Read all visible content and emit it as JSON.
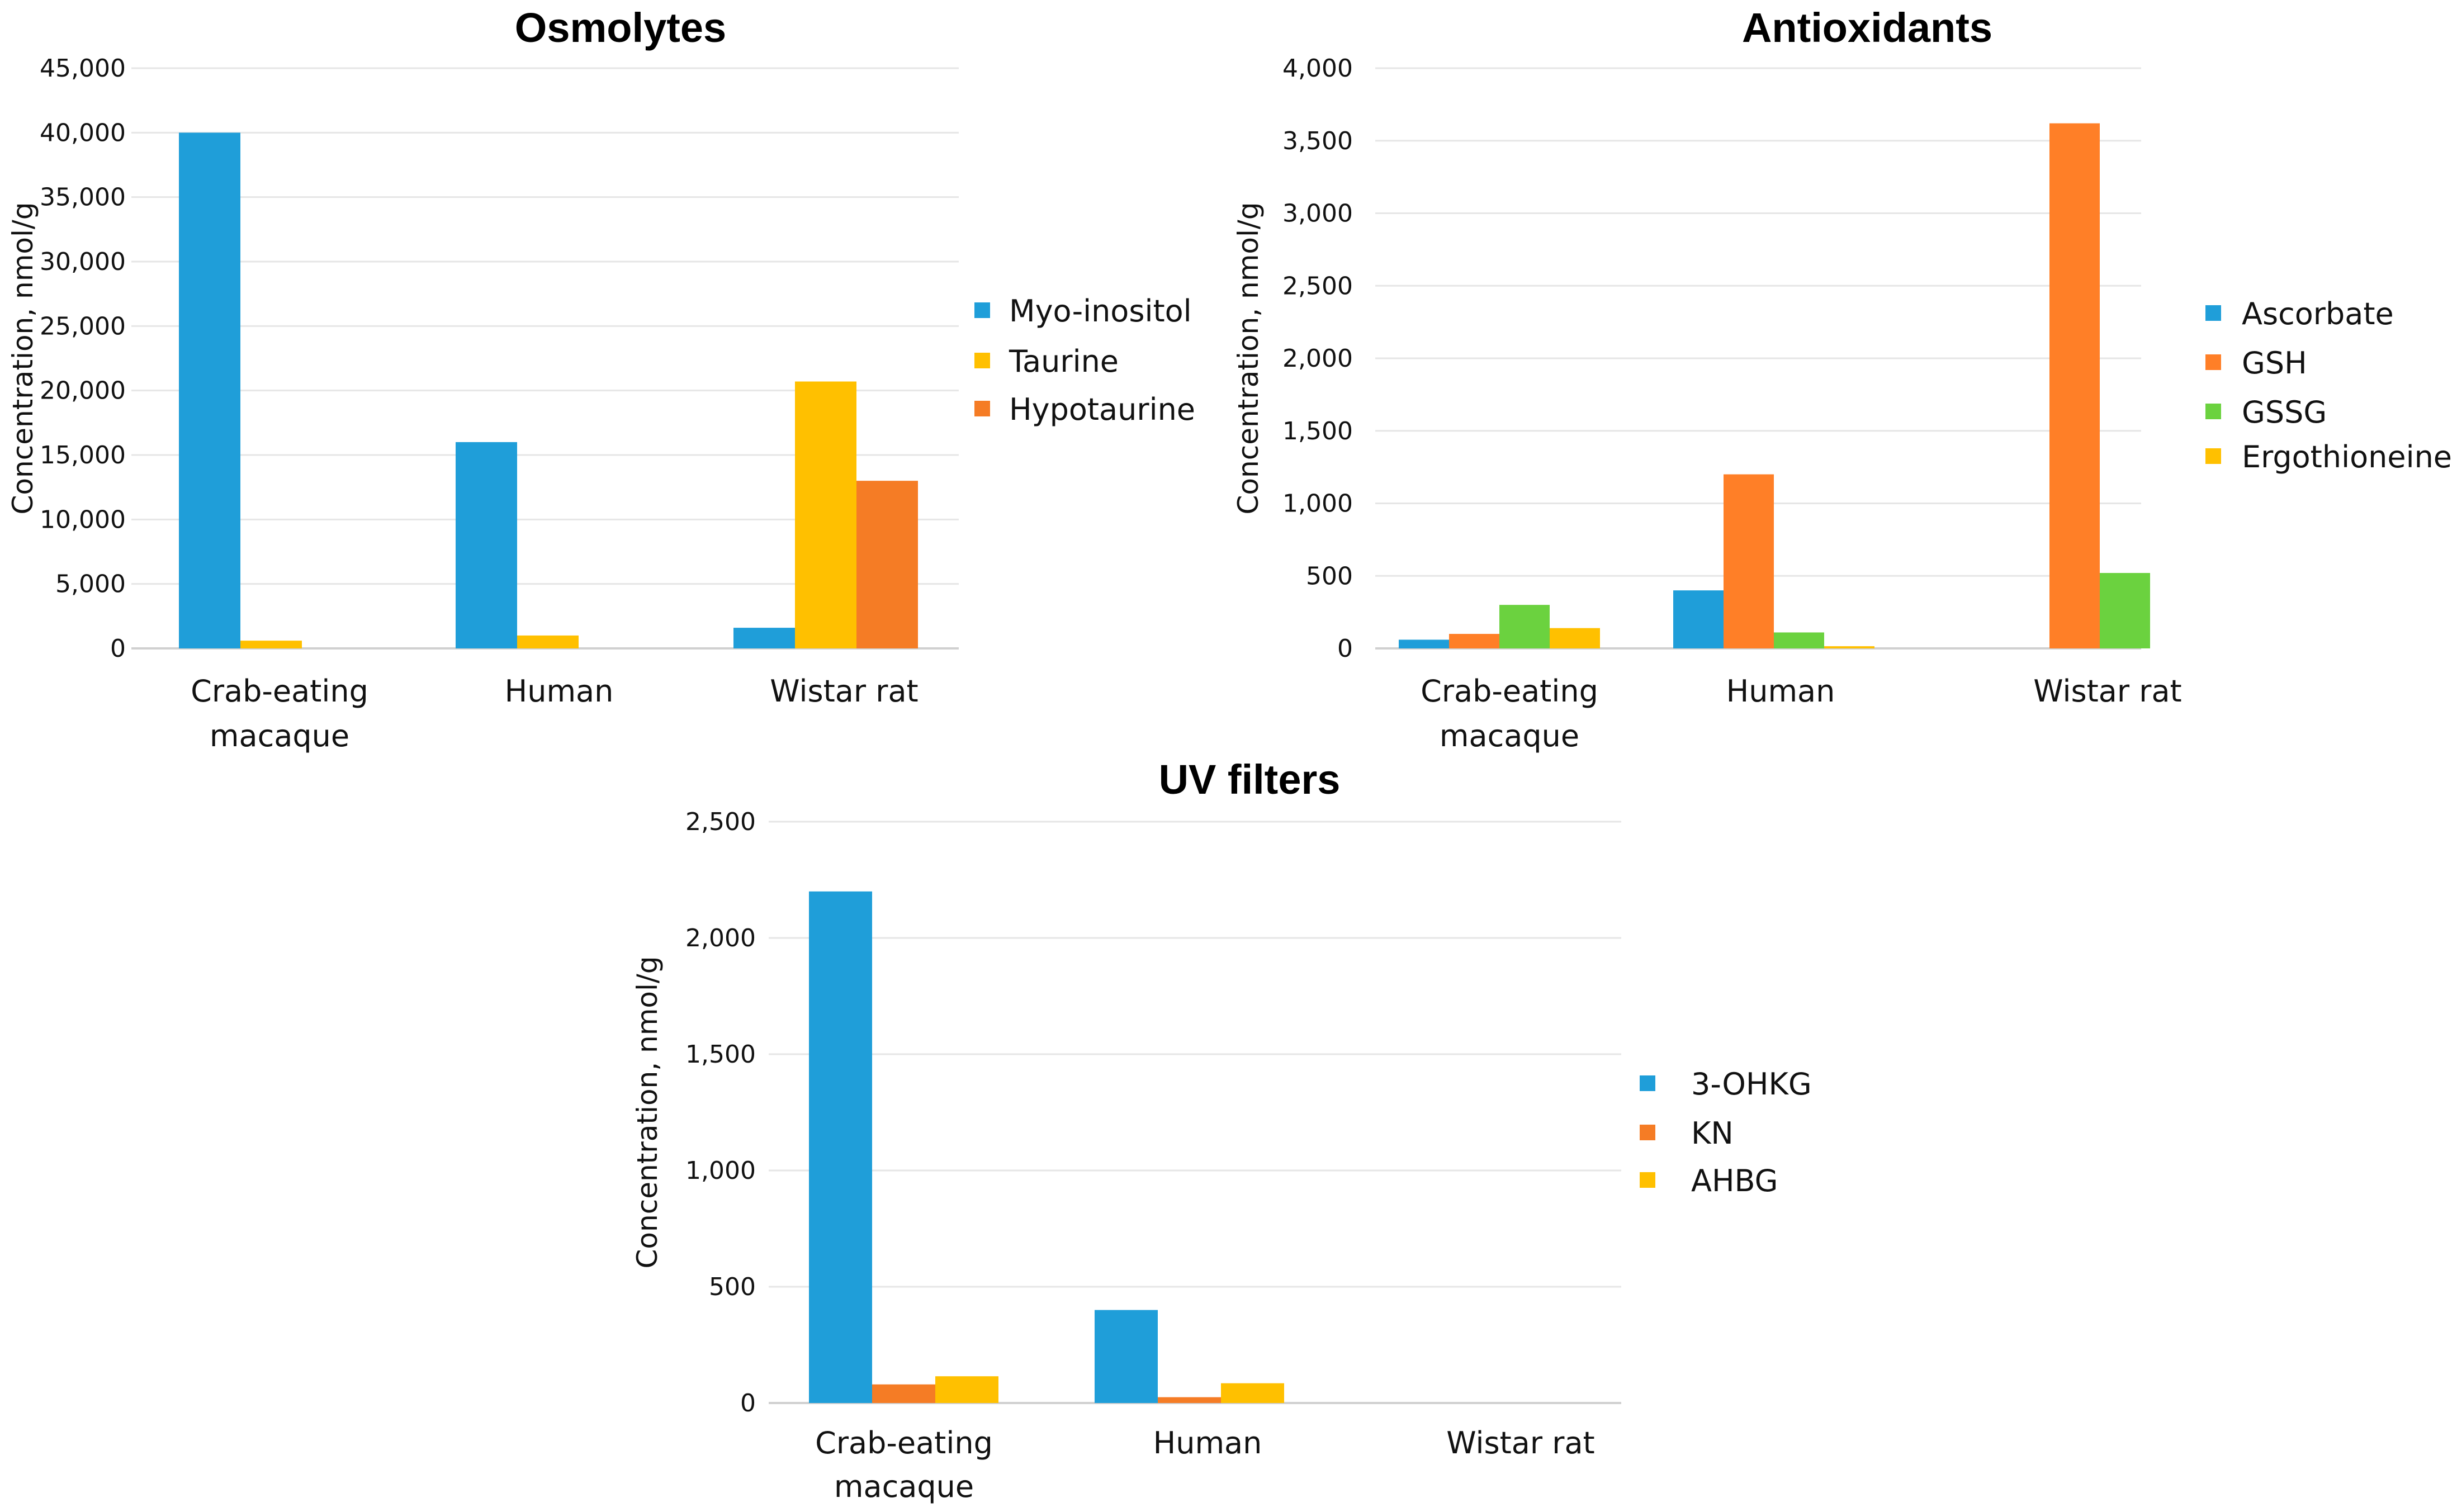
{
  "chart_data": [
    {
      "type": "bar",
      "title": "Osmolytes",
      "ylabel": "Concentration, nmol/g",
      "ylim": [
        0,
        45000
      ],
      "yticks": [
        "0",
        "5,000",
        "10,000",
        "15,000",
        "20,000",
        "25,000",
        "30,000",
        "35,000",
        "40,000",
        "45,000"
      ],
      "ytick_values": [
        0,
        5000,
        10000,
        15000,
        20000,
        25000,
        30000,
        35000,
        40000,
        45000
      ],
      "categories": [
        [
          "Crab-eating",
          "macaque"
        ],
        [
          "Human"
        ],
        [
          "Wistar rat"
        ]
      ],
      "series": [
        {
          "name": "Myo-inositol",
          "color": "#1f9ed9",
          "values": [
            40000,
            16000,
            1600
          ]
        },
        {
          "name": "Taurine",
          "color": "#ffc000",
          "values": [
            600,
            1000,
            20700
          ]
        },
        {
          "name": "Hypotaurine",
          "color": "#f57c25",
          "values": [
            0,
            0,
            13000
          ]
        }
      ],
      "legend": "right"
    },
    {
      "type": "bar",
      "title": "Antioxidants",
      "ylabel": "Concentration, nmol/g",
      "ylim": [
        0,
        4000
      ],
      "yticks": [
        "0",
        "500",
        "1,000",
        "1,500",
        "2,000",
        "2,500",
        "3,000",
        "3,500",
        "4,000"
      ],
      "ytick_values": [
        0,
        500,
        1000,
        1500,
        2000,
        2500,
        3000,
        3500,
        4000
      ],
      "categories": [
        [
          "Crab-eating",
          "macaque"
        ],
        [
          "Human"
        ],
        [
          "Wistar rat"
        ]
      ],
      "series": [
        {
          "name": "Ascorbate",
          "color": "#1f9ed9",
          "values": [
            60,
            400,
            0
          ]
        },
        {
          "name": "GSH",
          "color": "#ff7f27",
          "values": [
            100,
            1200,
            3620
          ]
        },
        {
          "name": "GSSG",
          "color": "#6bd23f",
          "values": [
            300,
            110,
            520
          ]
        },
        {
          "name": "Ergothioneine",
          "color": "#ffc000",
          "values": [
            140,
            15,
            0
          ]
        }
      ],
      "legend": "right"
    },
    {
      "type": "bar",
      "title": "UV filters",
      "ylabel": "Concentration, nmol/g",
      "ylim": [
        0,
        2500
      ],
      "yticks": [
        "0",
        "500",
        "1,000",
        "1,500",
        "2,000",
        "2,500"
      ],
      "ytick_values": [
        0,
        500,
        1000,
        1500,
        2000,
        2500
      ],
      "categories": [
        [
          "Crab-eating",
          "macaque"
        ],
        [
          "Human"
        ],
        [
          "Wistar rat"
        ]
      ],
      "series": [
        {
          "name": "3-OHKG",
          "color": "#1f9ed9",
          "values": [
            2200,
            400,
            0
          ]
        },
        {
          "name": "KN",
          "color": "#f57c25",
          "values": [
            80,
            25,
            0
          ]
        },
        {
          "name": "AHBG",
          "color": "#ffc000",
          "values": [
            115,
            85,
            0
          ]
        }
      ],
      "legend": "right"
    }
  ]
}
